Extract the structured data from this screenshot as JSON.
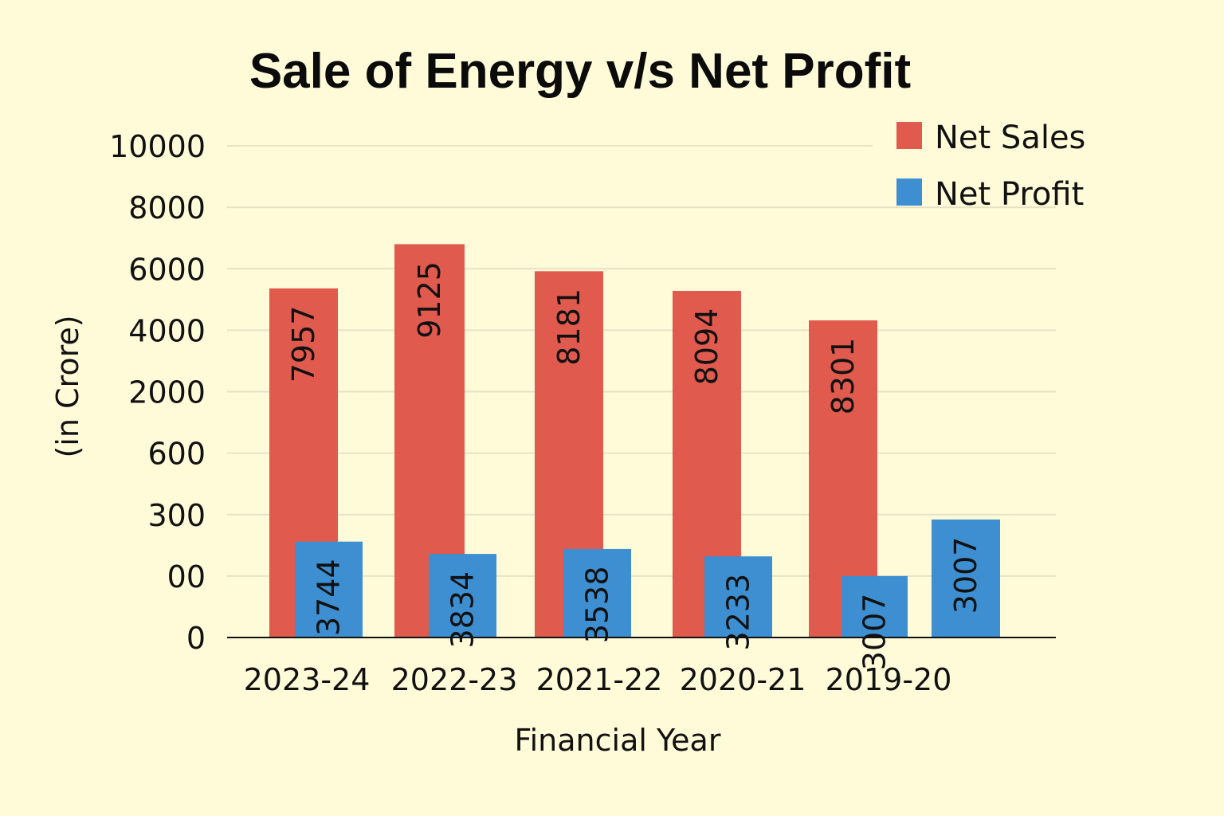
{
  "chart_data": {
    "type": "bar",
    "title": "Sale of Energy v/s Net Profit",
    "xlabel": "Financial Year",
    "ylabel": "(in Crore)",
    "categories": [
      "2023-24",
      "2022-23",
      "2021-22",
      "2020-21",
      "2019-20"
    ],
    "series": [
      {
        "name": "Net Sales",
        "color": "#e05a4e",
        "values": [
          7957,
          9125,
          8181,
          8094,
          8301
        ],
        "bar_levels": [
          7100,
          8000,
          7450,
          7050,
          6450
        ]
      },
      {
        "name": "Net Profit",
        "color": "#3d8fd1",
        "values": [
          3744,
          3834,
          3538,
          3233,
          3007
        ],
        "bar_levels": [
          1950,
          1700,
          1800,
          1650,
          1250
        ]
      }
    ],
    "extra_bar": {
      "series": "Net Profit",
      "value": 3007,
      "bar_level": 2400
    },
    "y_ticks": [
      "10000",
      "8000",
      "6000",
      "4000",
      "2000",
      "600",
      "300",
      "00",
      "0"
    ],
    "ylim": [
      0,
      10000
    ],
    "grid": true,
    "legend_position": "top-right"
  }
}
